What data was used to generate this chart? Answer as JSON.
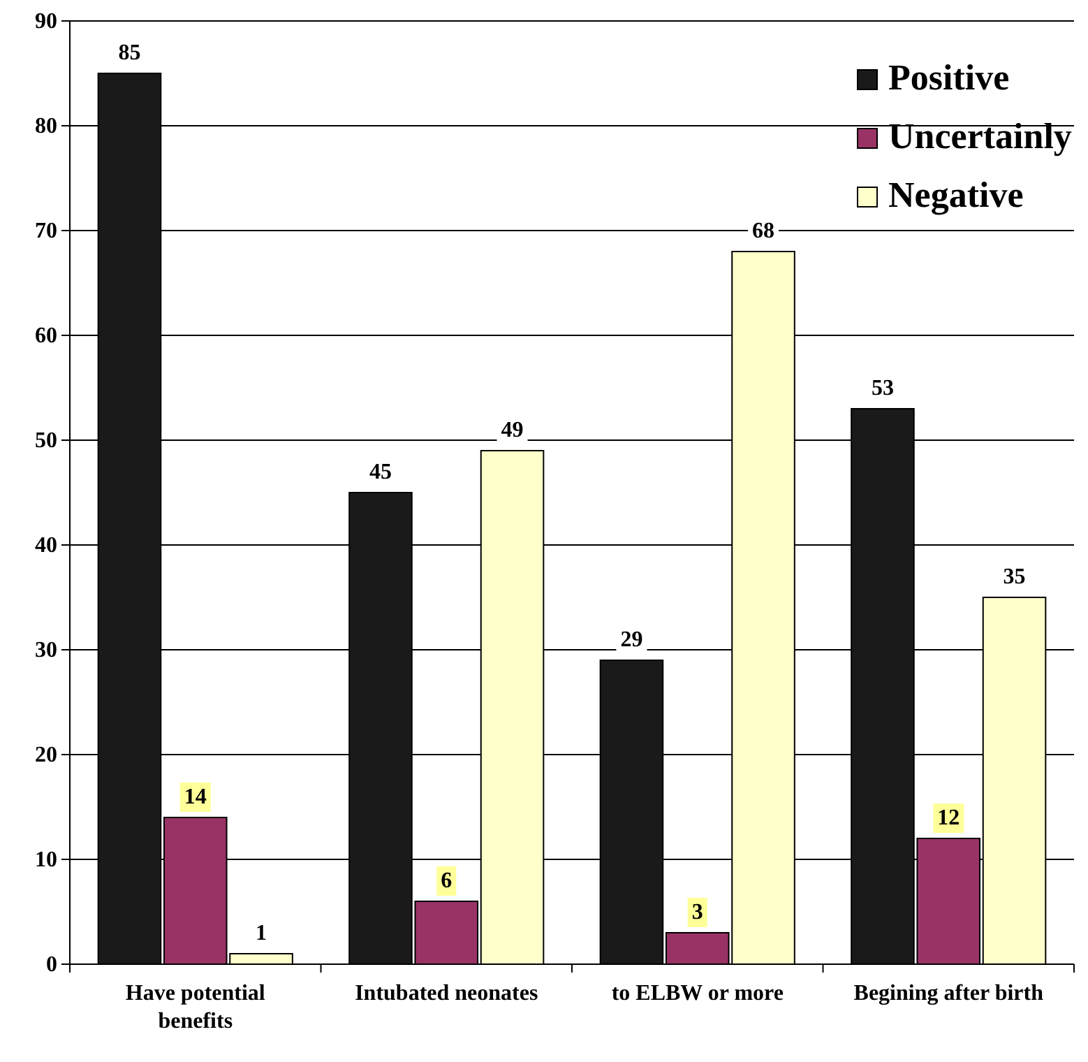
{
  "chart_data": {
    "type": "bar",
    "categories": [
      "Have potential benefits",
      "Intubated neonates",
      "to ELBW or more",
      "Begining after birth"
    ],
    "series": [
      {
        "name": "Positive",
        "color": "#1a1a1a",
        "values": [
          85,
          45,
          29,
          53
        ]
      },
      {
        "name": "Uncertainly",
        "color": "#993366",
        "values": [
          14,
          6,
          3,
          12
        ]
      },
      {
        "name": "Negative",
        "color": "#ffffcc",
        "values": [
          1,
          49,
          68,
          35
        ]
      }
    ],
    "ylim": [
      0,
      90
    ],
    "yticks": [
      0,
      10,
      20,
      30,
      40,
      50,
      60,
      70,
      80,
      90
    ],
    "grid": "y",
    "legend": "top right",
    "data_labels": true
  }
}
